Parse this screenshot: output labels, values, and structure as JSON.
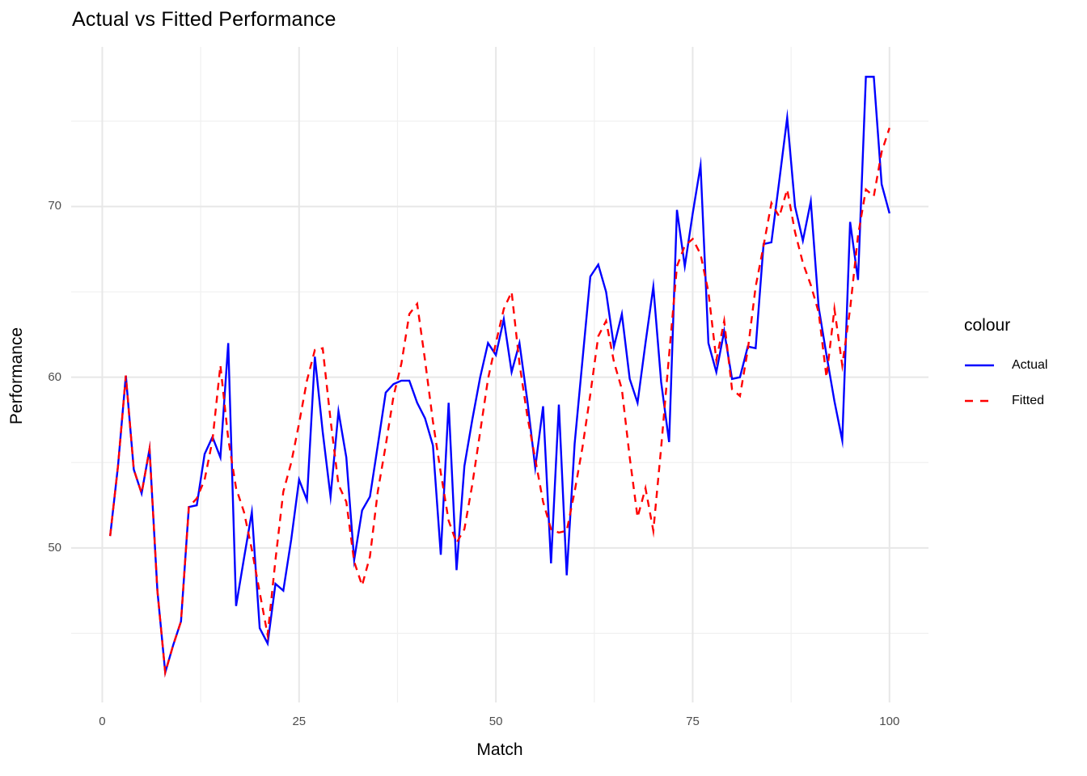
{
  "title": "Actual vs Fitted Performance",
  "x_axis": {
    "label": "Match",
    "tick_labels": [
      "0",
      "25",
      "50",
      "75",
      "100"
    ],
    "ticks": [
      0,
      25,
      50,
      75,
      100
    ],
    "minor_ticks": [
      12.5,
      37.5,
      62.5,
      87.5
    ],
    "range": [
      -3.95,
      104.95
    ]
  },
  "y_axis": {
    "label": "Performance",
    "tick_labels": [
      "50",
      "60",
      "70"
    ],
    "ticks": [
      50,
      60,
      70
    ],
    "minor_ticks": [
      45,
      55,
      65,
      75
    ],
    "range": [
      40.95,
      79.35
    ]
  },
  "legend": {
    "title": "colour",
    "items": [
      {
        "label": "Actual",
        "color": "#0000FF",
        "style": "solid"
      },
      {
        "label": "Fitted",
        "color": "#FF0000",
        "style": "dashed"
      }
    ]
  },
  "colors": {
    "actual_line": "#0000FF",
    "fitted_line": "#FF0000",
    "grid_major": "#E7E7E7",
    "grid_minor": "#F0F0F0",
    "tick_label": "#4D4D4D",
    "text": "#000000",
    "background": "#FFFFFF"
  },
  "chart_data": {
    "type": "line",
    "title": "Actual vs Fitted Performance",
    "xlabel": "Match",
    "ylabel": "Performance",
    "xlim": [
      -3.95,
      104.95
    ],
    "ylim": [
      40.95,
      79.35
    ],
    "grid": true,
    "legend_position": "right",
    "x": [
      1,
      2,
      3,
      4,
      5,
      6,
      7,
      8,
      9,
      10,
      11,
      12,
      13,
      14,
      15,
      16,
      17,
      18,
      19,
      20,
      21,
      22,
      23,
      24,
      25,
      26,
      27,
      28,
      29,
      30,
      31,
      32,
      33,
      34,
      35,
      36,
      37,
      38,
      39,
      40,
      41,
      42,
      43,
      44,
      45,
      46,
      47,
      48,
      49,
      50,
      51,
      52,
      53,
      54,
      55,
      56,
      57,
      58,
      59,
      60,
      61,
      62,
      63,
      64,
      65,
      66,
      67,
      68,
      69,
      70,
      71,
      72,
      73,
      74,
      75,
      76,
      77,
      78,
      79,
      80,
      81,
      82,
      83,
      84,
      85,
      86,
      87,
      88,
      89,
      90,
      91,
      92,
      93,
      94,
      95,
      96,
      97,
      98,
      99,
      100
    ],
    "series": [
      {
        "name": "Actual",
        "color": "#0000FF",
        "style": "solid",
        "values": [
          50.7,
          54.8,
          60.1,
          54.6,
          53.2,
          55.8,
          47.5,
          42.7,
          44.3,
          45.7,
          52.4,
          52.5,
          55.5,
          56.5,
          55.3,
          62.0,
          46.6,
          49.4,
          52.1,
          45.3,
          44.4,
          47.9,
          47.5,
          50.5,
          54.0,
          52.8,
          61.2,
          56.8,
          53.0,
          58.0,
          55.3,
          49.3,
          52.2,
          53.0,
          56.0,
          59.1,
          59.6,
          59.8,
          59.8,
          58.5,
          57.6,
          56.0,
          49.6,
          58.5,
          48.7,
          54.8,
          57.5,
          60.0,
          62.0,
          61.3,
          63.4,
          60.3,
          62.0,
          58.6,
          54.7,
          58.3,
          49.1,
          58.4,
          48.4,
          56.1,
          61.0,
          65.9,
          66.6,
          65.0,
          61.8,
          63.7,
          59.9,
          58.5,
          62.0,
          65.3,
          59.7,
          56.2,
          69.8,
          66.5,
          69.6,
          72.4,
          62.0,
          60.3,
          62.7,
          59.9,
          60.0,
          61.8,
          61.7,
          67.8,
          67.9,
          71.5,
          75.2,
          70.0,
          68.0,
          70.3,
          64.1,
          61.3,
          58.6,
          56.3,
          69.1,
          65.7,
          77.6,
          77.6,
          71.3,
          69.6
        ]
      },
      {
        "name": "Fitted",
        "color": "#FF0000",
        "style": "dashed",
        "values": [
          50.7,
          54.8,
          60.1,
          54.6,
          53.2,
          55.8,
          47.5,
          42.7,
          44.3,
          45.7,
          52.4,
          52.9,
          54.0,
          56.3,
          60.7,
          56.4,
          53.5,
          52.1,
          49.9,
          47.4,
          44.9,
          49.3,
          53.3,
          55.0,
          57.3,
          59.8,
          61.6,
          61.7,
          57.5,
          53.7,
          52.7,
          49.2,
          47.8,
          49.5,
          53.3,
          56.0,
          58.9,
          60.8,
          63.7,
          64.3,
          61.0,
          57.4,
          54.4,
          51.6,
          50.3,
          51.1,
          53.7,
          56.8,
          59.9,
          62.0,
          64.0,
          65.0,
          60.8,
          57.7,
          55.2,
          52.7,
          51.1,
          50.9,
          51.0,
          53.3,
          55.9,
          59.0,
          62.4,
          63.3,
          60.9,
          59.3,
          55.3,
          51.8,
          53.5,
          51.0,
          55.9,
          61.3,
          66.5,
          67.7,
          68.1,
          67.2,
          65.0,
          61.0,
          63.3,
          59.3,
          58.9,
          61.6,
          65.3,
          67.7,
          70.2,
          69.4,
          71.0,
          68.5,
          66.7,
          65.4,
          63.8,
          60.0,
          64.0,
          60.7,
          64.0,
          68.3,
          71.0,
          70.6,
          73.2,
          74.6
        ]
      }
    ]
  }
}
